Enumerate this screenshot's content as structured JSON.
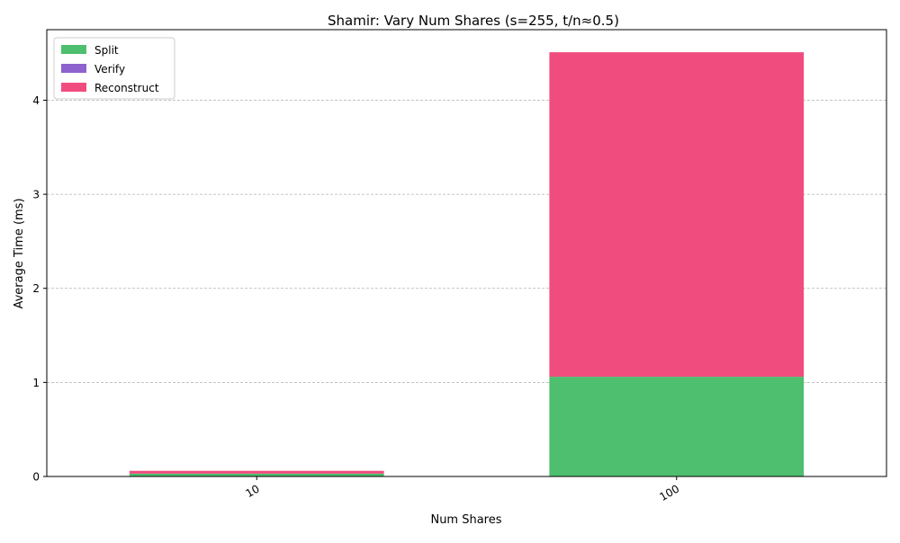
{
  "chart_data": {
    "type": "bar",
    "stacked": true,
    "title": "Shamir: Vary Num Shares (s=255, t/n≈0.5)",
    "xlabel": "Num Shares",
    "ylabel": "Average Time (ms)",
    "categories": [
      "10",
      "100"
    ],
    "series": [
      {
        "name": "Split",
        "color": "#4dbf6e",
        "values": [
          0.03,
          1.06
        ]
      },
      {
        "name": "Verify",
        "color": "#8e62cf",
        "values": [
          0.0,
          0.0
        ]
      },
      {
        "name": "Reconstruct",
        "color": "#f04d7e",
        "values": [
          0.03,
          3.45
        ]
      }
    ],
    "ylim": [
      0,
      4.75
    ],
    "yticks": [
      0,
      1,
      2,
      3,
      4
    ],
    "grid": "y-dashed",
    "legend": "top-left"
  }
}
